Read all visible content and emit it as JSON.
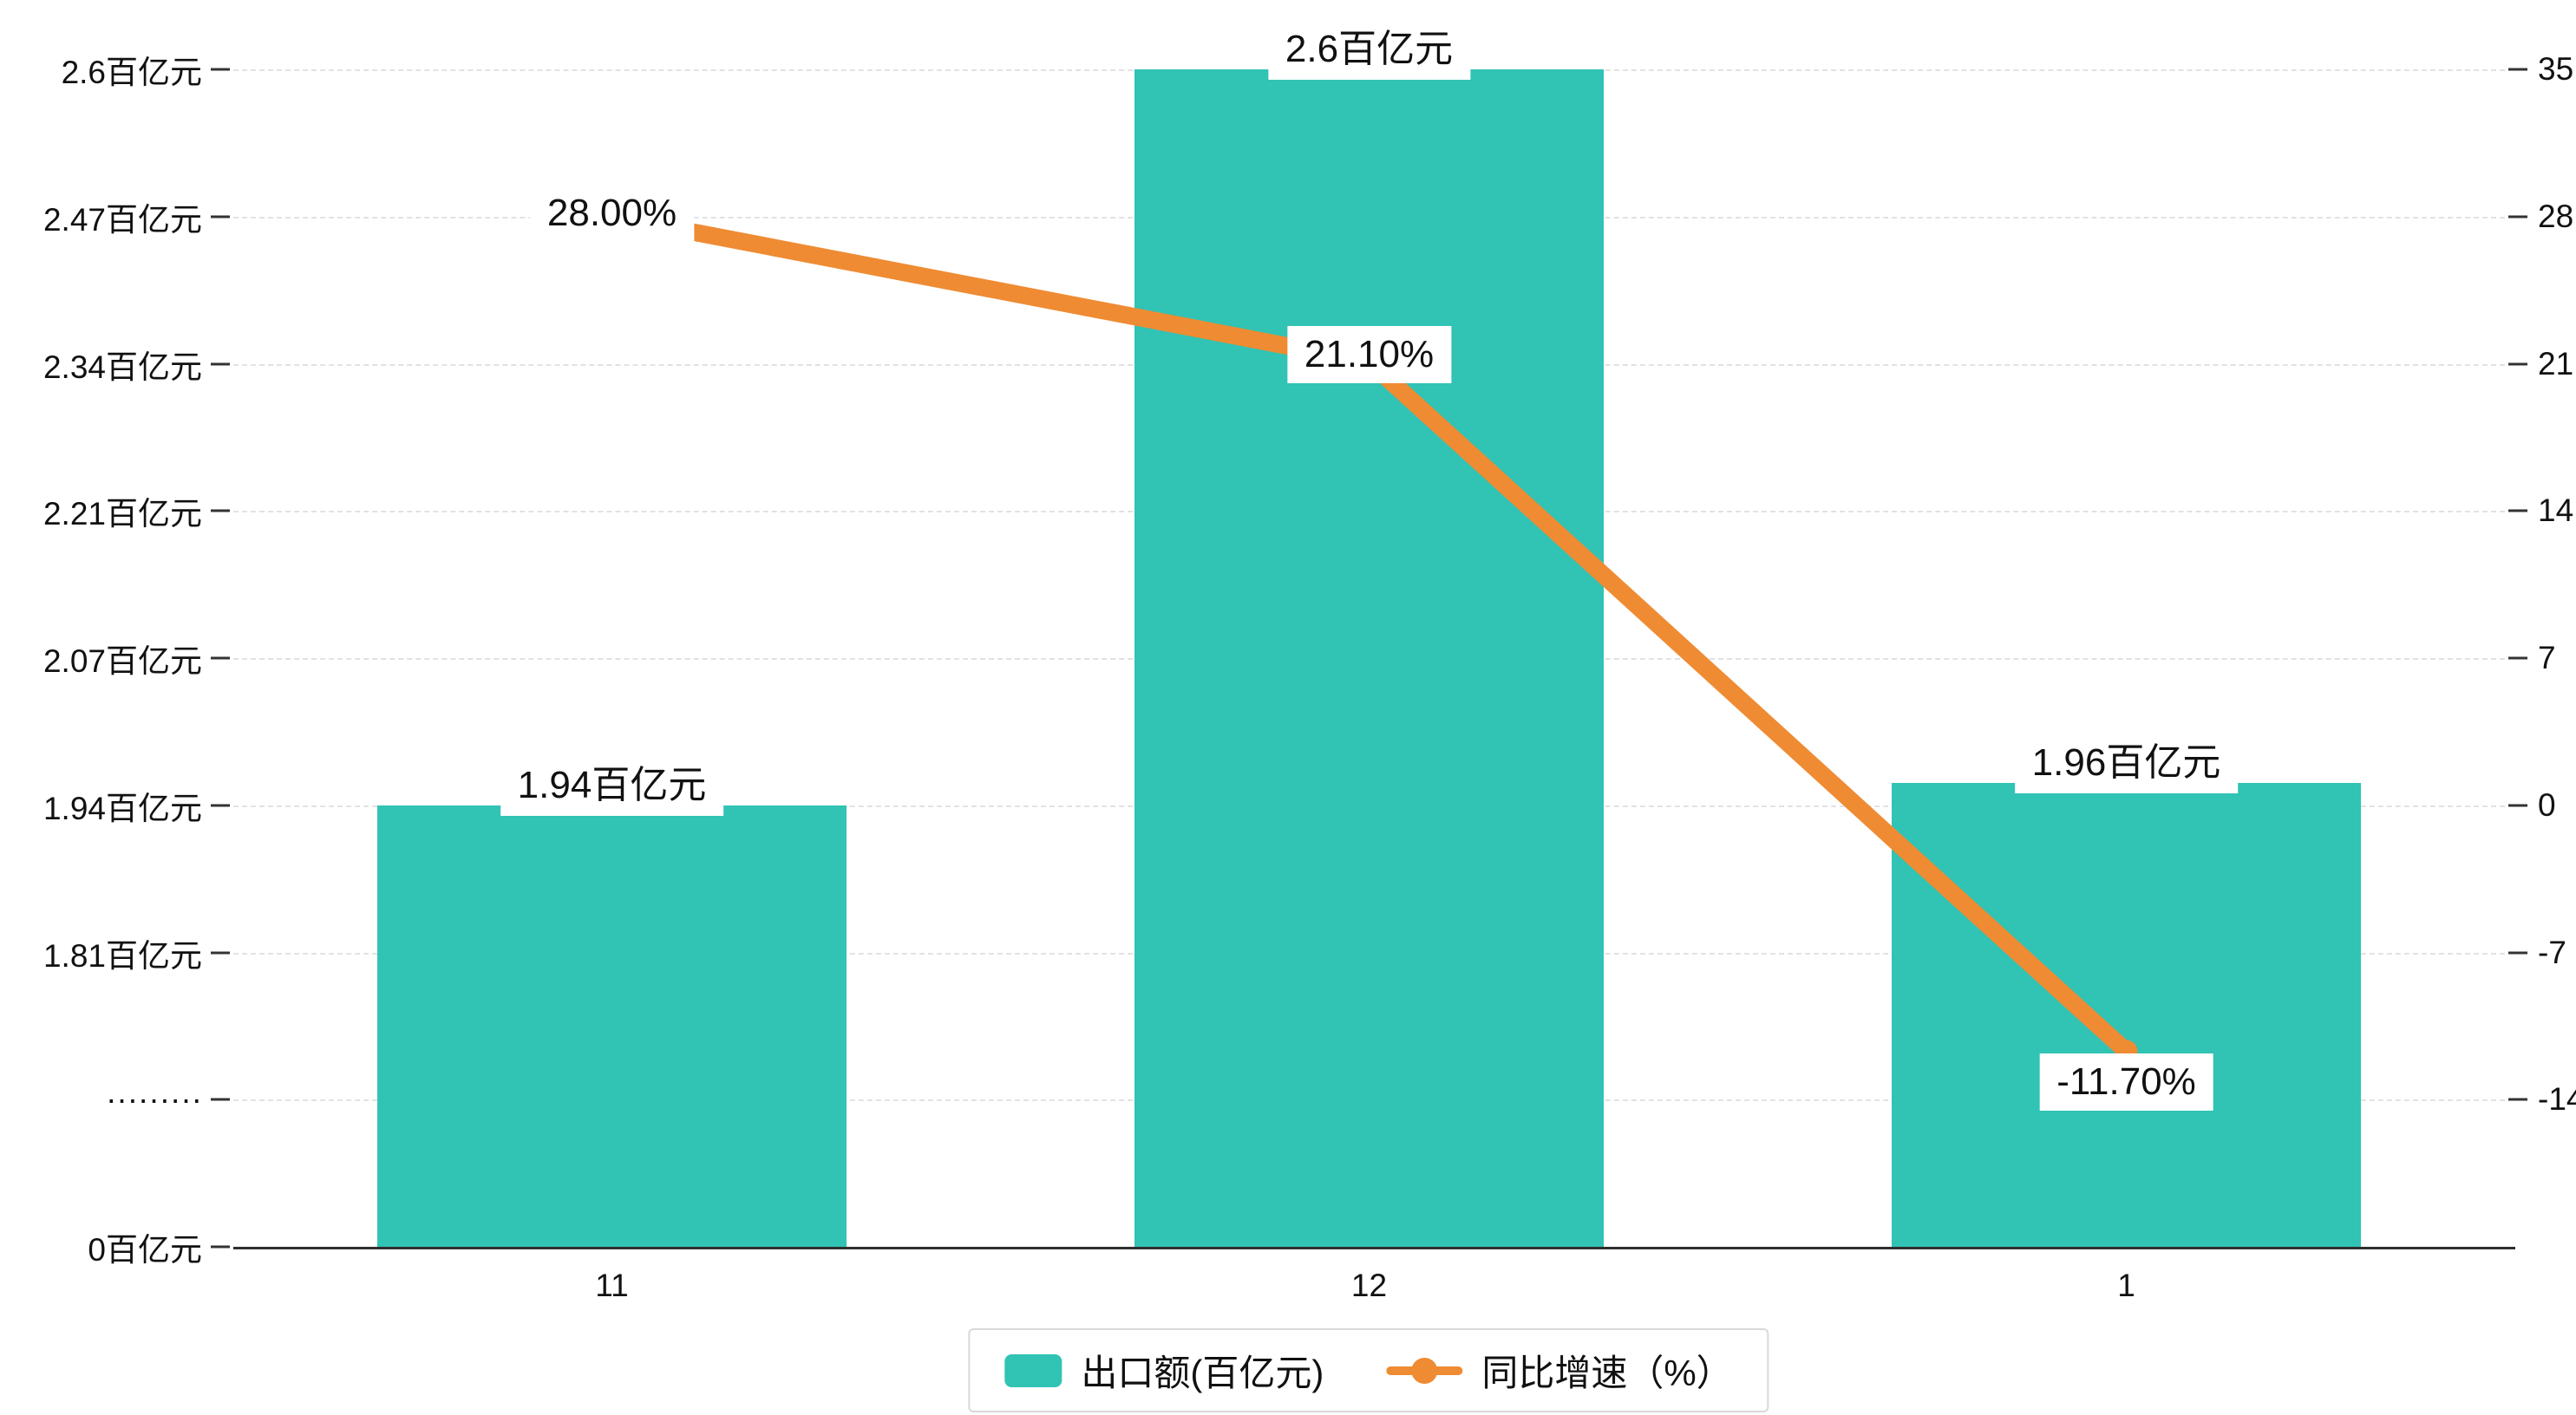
{
  "chart_data": {
    "type": "bar",
    "title": "",
    "xlabel": "",
    "ylabel": "",
    "grid": true,
    "legend_position": "bottom",
    "categories": [
      "11",
      "12",
      "1"
    ],
    "series": [
      {
        "name": "出口额(百亿元)",
        "type": "bar",
        "axis": "left",
        "values": [
          1.94,
          2.6,
          1.96
        ],
        "labels": [
          "1.94百亿元",
          "2.6百亿元",
          "1.96百亿元"
        ],
        "color": "#31C3B4"
      },
      {
        "name": "同比增速（%）",
        "type": "line",
        "axis": "right",
        "values": [
          28.0,
          21.1,
          -11.7
        ],
        "labels": [
          "28.00%",
          "21.10%",
          "-11.70%"
        ],
        "color": "#EF8B33"
      }
    ],
    "left_axis": {
      "unit": "百亿元",
      "axis_break": true,
      "ticks": [
        "2.6百亿元",
        "2.47百亿元",
        "2.34百亿元",
        "2.21百亿元",
        "2.07百亿元",
        "1.94百亿元",
        "1.81百亿元",
        "·········",
        "0百亿元"
      ],
      "tick_values": [
        2.6,
        2.47,
        2.34,
        2.21,
        2.07,
        1.94,
        1.81
      ]
    },
    "right_axis": {
      "ticks": [
        "35",
        "28",
        "21",
        "14",
        "7",
        "0",
        "-7",
        "-14"
      ],
      "max": 35,
      "interval": 7
    }
  },
  "colors": {
    "bar": "#31C3B4",
    "line": "#EF8B33",
    "grid": "#E2E2E2",
    "axis": "#2F2F2F",
    "text": "#111111"
  }
}
